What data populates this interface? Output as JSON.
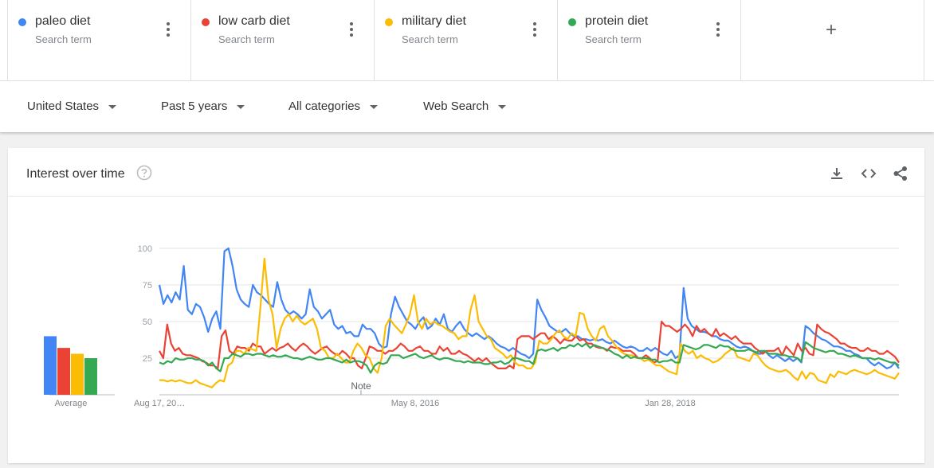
{
  "search_terms": [
    {
      "name": "paleo diet",
      "subtitle": "Search term",
      "color": "#4285f4"
    },
    {
      "name": "low carb diet",
      "subtitle": "Search term",
      "color": "#ea4335"
    },
    {
      "name": "military diet",
      "subtitle": "Search term",
      "color": "#fbbc04"
    },
    {
      "name": "protein diet",
      "subtitle": "Search term",
      "color": "#34a853"
    }
  ],
  "add_term_label": "+",
  "filters": {
    "region": "United States",
    "time_range": "Past 5 years",
    "category": "All categories",
    "search_type": "Web Search"
  },
  "card": {
    "title": "Interest over time",
    "help_icon": "help-circle-icon",
    "tools": [
      "download-icon",
      "embed-code-icon",
      "share-icon"
    ]
  },
  "chart_data": {
    "type": "line",
    "y_ticks": [
      100,
      75,
      50,
      25
    ],
    "ylim": [
      0,
      100
    ],
    "x_tick_labels": [
      "Aug 17, 20…",
      "May 8, 2016",
      "Jan 28, 2018"
    ],
    "note_label": "Note",
    "grid": true,
    "average_label": "Average",
    "averages": [
      {
        "series": "paleo diet",
        "value": 40
      },
      {
        "series": "low carb diet",
        "value": 32
      },
      {
        "series": "military diet",
        "value": 28
      },
      {
        "series": "protein diet",
        "value": 25
      }
    ],
    "series": [
      {
        "name": "paleo diet",
        "color": "#4285f4",
        "values": [
          75,
          62,
          68,
          63,
          70,
          65,
          88,
          58,
          55,
          62,
          60,
          53,
          43,
          52,
          57,
          45,
          98,
          100,
          88,
          72,
          65,
          62,
          60,
          75,
          70,
          68,
          65,
          62,
          60,
          77,
          65,
          58,
          55,
          57,
          55,
          52,
          55,
          72,
          60,
          57,
          52,
          55,
          58,
          48,
          45,
          47,
          42,
          43,
          40,
          40,
          48,
          45,
          45,
          42,
          35,
          32,
          33,
          55,
          67,
          60,
          55,
          50,
          48,
          45,
          50,
          53,
          45,
          47,
          52,
          48,
          55,
          45,
          43,
          47,
          50,
          45,
          42,
          40,
          42,
          40,
          38,
          40,
          38,
          35,
          33,
          32,
          30,
          32,
          30,
          28,
          27,
          25,
          28,
          65,
          58,
          53,
          47,
          45,
          43,
          43,
          45,
          42,
          40,
          40,
          38,
          38,
          37,
          38,
          37,
          38,
          36,
          35,
          37,
          35,
          33,
          32,
          33,
          32,
          30,
          30,
          32,
          30,
          32,
          30,
          28,
          27,
          30,
          25,
          27,
          73,
          52,
          47,
          45,
          43,
          43,
          42,
          40,
          40,
          38,
          37,
          37,
          35,
          33,
          32,
          33,
          32,
          30,
          28,
          28,
          30,
          27,
          25,
          27,
          25,
          23,
          25,
          23,
          25,
          22,
          47,
          45,
          42,
          40,
          38,
          37,
          35,
          33,
          33,
          32,
          30,
          30,
          28,
          27,
          25,
          25,
          22,
          20,
          22,
          20,
          18,
          19,
          22,
          18
        ],
        "gap_after": []
      },
      {
        "name": "low carb diet",
        "color": "#ea4335",
        "values": [
          30,
          25,
          48,
          35,
          30,
          32,
          28,
          27,
          27,
          26,
          25,
          23,
          22,
          20,
          20,
          18,
          40,
          44,
          30,
          28,
          33,
          32,
          32,
          30,
          35,
          33,
          33,
          28,
          30,
          32,
          30,
          32,
          33,
          35,
          32,
          30,
          33,
          35,
          33,
          30,
          28,
          30,
          32,
          33,
          30,
          28,
          27,
          30,
          28,
          25,
          25,
          20,
          18,
          25,
          33,
          32,
          30,
          30,
          28,
          30,
          30,
          32,
          35,
          33,
          30,
          30,
          32,
          33,
          30,
          30,
          28,
          28,
          33,
          30,
          32,
          28,
          28,
          30,
          28,
          27,
          25,
          23,
          25,
          23,
          25,
          22,
          20,
          18,
          18,
          18,
          20,
          18,
          38,
          40,
          40,
          40,
          38,
          40,
          42,
          42,
          38,
          40,
          38,
          35,
          38,
          37,
          37,
          40,
          37,
          38,
          35,
          35,
          33,
          32,
          32,
          30,
          33,
          32,
          32,
          30,
          30,
          30,
          28,
          25,
          25,
          27,
          25,
          22,
          23,
          50,
          47,
          47,
          45,
          43,
          45,
          48,
          45,
          40,
          47,
          43,
          45,
          42,
          40,
          45,
          40,
          42,
          40,
          38,
          40,
          37,
          35,
          35,
          35,
          32,
          30,
          28,
          30,
          30,
          30,
          32,
          27,
          33,
          30,
          27,
          35,
          30,
          32,
          28,
          27,
          48,
          45,
          43,
          42,
          40,
          38,
          35,
          35,
          33,
          32,
          32,
          30,
          30,
          32,
          30,
          30,
          28,
          28,
          30,
          28,
          26,
          22
        ]
      },
      {
        "name": "military diet",
        "color": "#fbbc04",
        "values": [
          10,
          10,
          9,
          10,
          9,
          10,
          9,
          8,
          8,
          10,
          8,
          7,
          6,
          5,
          8,
          10,
          9,
          20,
          22,
          30,
          30,
          28,
          32,
          31,
          30,
          60,
          93,
          65,
          55,
          32,
          45,
          52,
          55,
          50,
          54,
          50,
          48,
          50,
          52,
          45,
          32,
          30,
          25,
          25,
          28,
          25,
          22,
          22,
          30,
          35,
          32,
          27,
          25,
          18,
          15,
          25,
          47,
          52,
          48,
          45,
          42,
          48,
          55,
          68,
          50,
          45,
          52,
          48,
          50,
          48,
          47,
          45,
          43,
          42,
          38,
          40,
          40,
          58,
          68,
          50,
          45,
          40,
          38,
          32,
          30,
          28,
          25,
          27,
          22,
          20,
          20,
          18,
          18,
          22,
          37,
          35,
          35,
          38,
          42,
          44,
          40,
          38,
          42,
          40,
          56,
          55,
          45,
          40,
          37,
          45,
          47,
          40,
          37,
          33,
          30,
          28,
          27,
          27,
          25,
          25,
          23,
          24,
          22,
          20,
          20,
          18,
          16,
          15,
          14,
          35,
          30,
          28,
          30,
          25,
          27,
          25,
          24,
          22,
          23,
          25,
          28,
          30,
          32,
          26,
          25,
          24,
          23,
          28,
          27,
          23,
          20,
          18,
          17,
          16,
          16,
          17,
          15,
          12,
          10,
          16,
          11,
          15,
          14,
          10,
          9,
          8,
          14,
          12,
          16,
          15,
          14,
          16,
          17,
          16,
          15,
          14,
          15,
          17,
          15,
          14,
          13,
          12,
          11,
          15
        ]
      },
      {
        "name": "protein diet",
        "color": "#34a853",
        "values": [
          22,
          21,
          23,
          22,
          25,
          24,
          24,
          25,
          25,
          24,
          24,
          23,
          20,
          22,
          18,
          16,
          25,
          25,
          28,
          27,
          26,
          28,
          28,
          27,
          28,
          28,
          27,
          26,
          27,
          26,
          26,
          27,
          26,
          25,
          25,
          24,
          25,
          26,
          25,
          24,
          24,
          25,
          25,
          24,
          23,
          22,
          24,
          22,
          23,
          23,
          22,
          20,
          15,
          20,
          22,
          21,
          22,
          27,
          27,
          27,
          25,
          26,
          27,
          28,
          26,
          25,
          26,
          27,
          25,
          24,
          25,
          25,
          24,
          23,
          23,
          22,
          23,
          22,
          22,
          22,
          21,
          21,
          22,
          22,
          23,
          21,
          22,
          25,
          25,
          24,
          23,
          23,
          21,
          30,
          31,
          30,
          31,
          32,
          30,
          32,
          32,
          34,
          33,
          35,
          33,
          35,
          32,
          34,
          33,
          32,
          31,
          30,
          28,
          27,
          25,
          27,
          25,
          26,
          25,
          25,
          25,
          24,
          24,
          22,
          23,
          23,
          24,
          22,
          22,
          34,
          33,
          32,
          31,
          32,
          34,
          34,
          33,
          32,
          34,
          33,
          33,
          31,
          30,
          30,
          30,
          31,
          30,
          29,
          30,
          30,
          28,
          28,
          28,
          27,
          27,
          26,
          26,
          25,
          23,
          36,
          34,
          32,
          31,
          30,
          29,
          30,
          30,
          28,
          28,
          27,
          26,
          27,
          26,
          25,
          25,
          25,
          24,
          25,
          24,
          23,
          22,
          22,
          20
        ]
      }
    ]
  }
}
